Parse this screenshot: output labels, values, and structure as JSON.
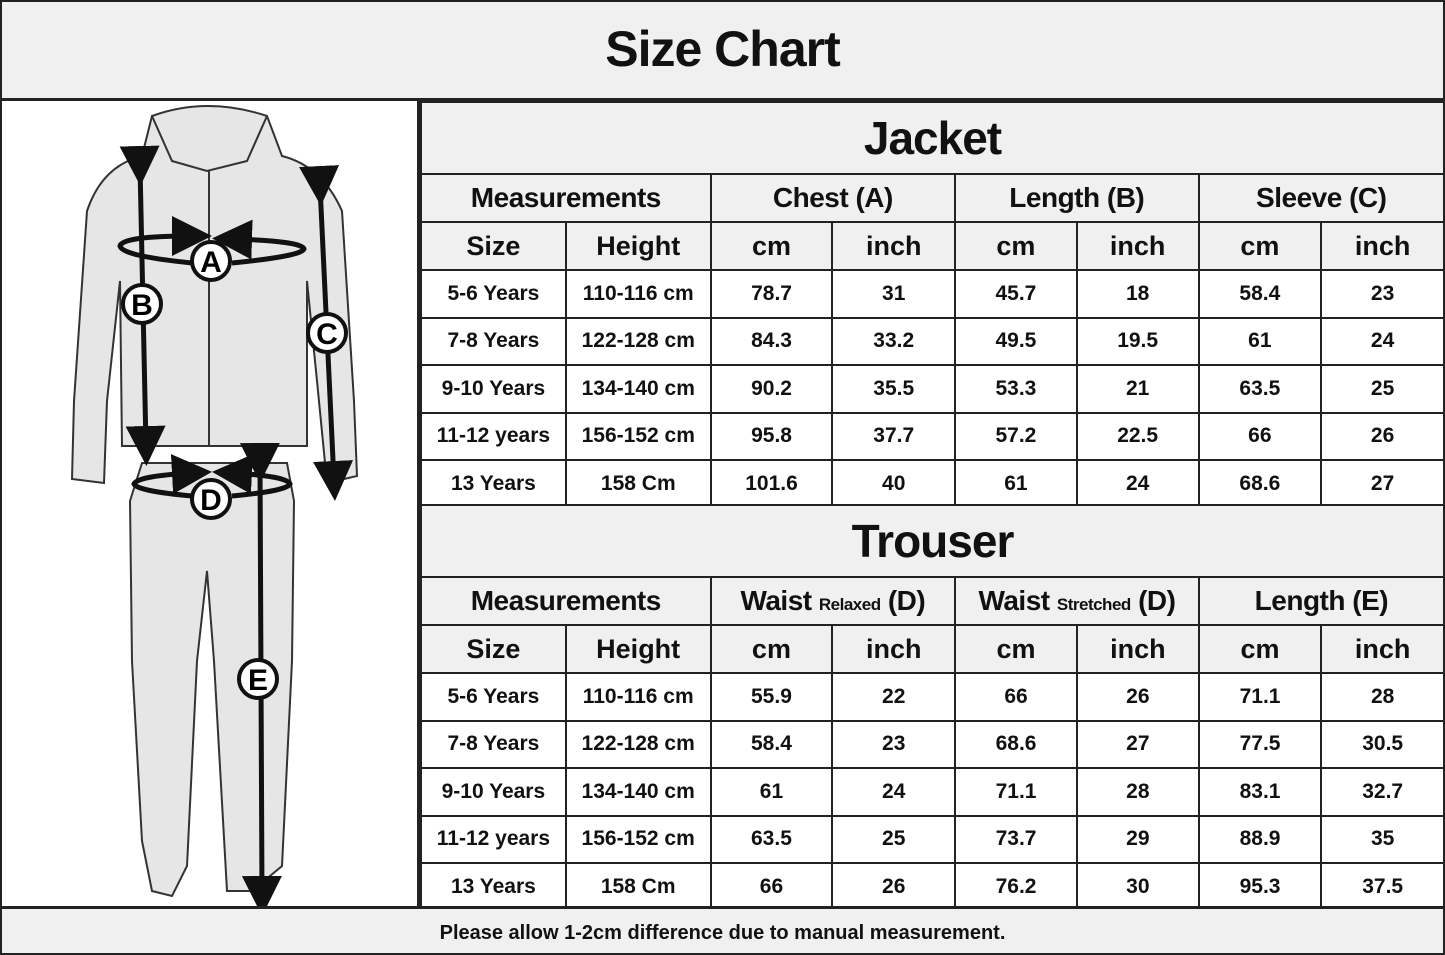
{
  "title": "Size Chart",
  "illustration": {
    "labels": [
      "A",
      "B",
      "C",
      "D",
      "E"
    ]
  },
  "jacket": {
    "heading": "Jacket",
    "groups": [
      "Measurements",
      "Chest (A)",
      "Length (B)",
      "Sleeve (C)"
    ],
    "subheaders": [
      "Size",
      "Height",
      "cm",
      "inch",
      "cm",
      "inch",
      "cm",
      "inch"
    ],
    "rows": [
      [
        "5-6 Years",
        "110-116 cm",
        "78.7",
        "31",
        "45.7",
        "18",
        "58.4",
        "23"
      ],
      [
        "7-8 Years",
        "122-128 cm",
        "84.3",
        "33.2",
        "49.5",
        "19.5",
        "61",
        "24"
      ],
      [
        "9-10 Years",
        "134-140 cm",
        "90.2",
        "35.5",
        "53.3",
        "21",
        "63.5",
        "25"
      ],
      [
        "11-12 years",
        "156-152 cm",
        "95.8",
        "37.7",
        "57.2",
        "22.5",
        "66",
        "26"
      ],
      [
        "13 Years",
        "158 Cm",
        "101.6",
        "40",
        "61",
        "24",
        "68.6",
        "27"
      ]
    ]
  },
  "trouser": {
    "heading": "Trouser",
    "groups": [
      {
        "main": "Measurements",
        "small": "",
        "suffix": ""
      },
      {
        "main": "Waist",
        "small": "Relaxed",
        "suffix": "(D)"
      },
      {
        "main": "Waist",
        "small": "Stretched",
        "suffix": "(D)"
      },
      {
        "main": "Length (E)",
        "small": "",
        "suffix": ""
      }
    ],
    "subheaders": [
      "Size",
      "Height",
      "cm",
      "inch",
      "cm",
      "inch",
      "cm",
      "inch"
    ],
    "rows": [
      [
        "5-6 Years",
        "110-116 cm",
        "55.9",
        "22",
        "66",
        "26",
        "71.1",
        "28"
      ],
      [
        "7-8 Years",
        "122-128 cm",
        "58.4",
        "23",
        "68.6",
        "27",
        "77.5",
        "30.5"
      ],
      [
        "9-10 Years",
        "134-140 cm",
        "61",
        "24",
        "71.1",
        "28",
        "83.1",
        "32.7"
      ],
      [
        "11-12 years",
        "156-152 cm",
        "63.5",
        "25",
        "73.7",
        "29",
        "88.9",
        "35"
      ],
      [
        "13 Years",
        "158 Cm",
        "66",
        "26",
        "76.2",
        "30",
        "95.3",
        "37.5"
      ]
    ]
  },
  "footer": "Please allow 1-2cm difference due to manual measurement."
}
